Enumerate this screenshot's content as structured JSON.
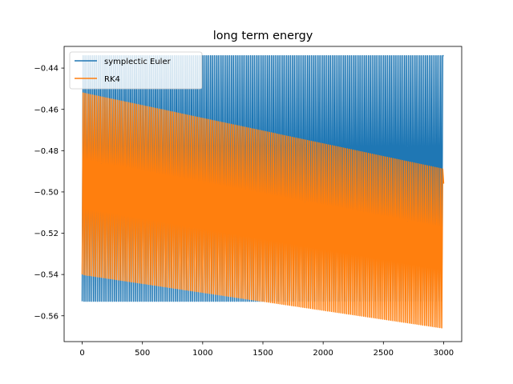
{
  "chart_data": {
    "type": "line",
    "title": "long term energy",
    "xlabel": "",
    "ylabel": "",
    "xlim": [
      -150,
      3150
    ],
    "ylim": [
      -0.5725,
      -0.4295
    ],
    "xticks": [
      0,
      500,
      1000,
      1500,
      2000,
      2500,
      3000
    ],
    "xtick_labels": [
      "0",
      "500",
      "1000",
      "1500",
      "2000",
      "2500",
      "3000"
    ],
    "yticks": [
      -0.56,
      -0.54,
      -0.52,
      -0.5,
      -0.48,
      -0.46,
      -0.44
    ],
    "ytick_labels": [
      "−0.56",
      "−0.54",
      "−0.52",
      "−0.50",
      "−0.48",
      "−0.46",
      "−0.44"
    ],
    "grid": false,
    "legend_position": "top-left",
    "series": [
      {
        "name": "symplectic Euler",
        "color": "#1f77b4",
        "x_range": [
          0,
          3000
        ],
        "oscillation_count": 190,
        "envelope_upper": {
          "x": [
            0,
            3000
          ],
          "y": [
            -0.434,
            -0.434
          ]
        },
        "envelope_lower": {
          "x": [
            0,
            3000
          ],
          "y": [
            -0.553,
            -0.553
          ]
        },
        "start_value": -0.553,
        "end_value": -0.434
      },
      {
        "name": "RK4",
        "color": "#ff7f0e",
        "x_range": [
          0,
          3000
        ],
        "oscillation_count": 190,
        "envelope_upper": {
          "x": [
            0,
            3000
          ],
          "y": [
            -0.452,
            -0.489
          ]
        },
        "envelope_lower": {
          "x": [
            0,
            3000
          ],
          "y": [
            -0.54,
            -0.566
          ]
        },
        "start_value": -0.54,
        "end_value": -0.496
      }
    ]
  }
}
